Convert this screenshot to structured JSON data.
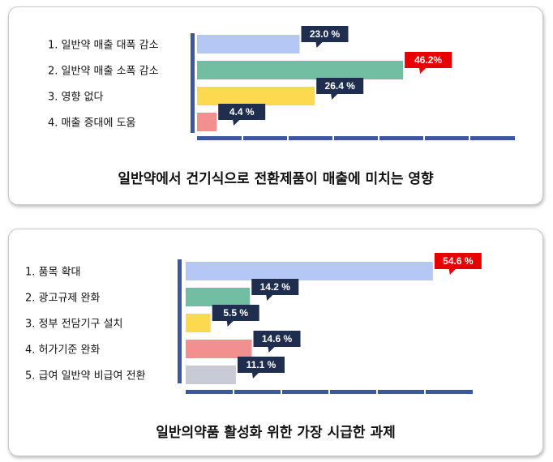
{
  "chart_data": [
    {
      "type": "bar",
      "orientation": "horizontal",
      "title": "일반약에서 건기식으로 전환제품이 매출에 미치는 영향",
      "categories": [
        "1. 일반약 매출 대폭 감소",
        "2. 일반약 매출 소폭 감소",
        "3. 영향 없다",
        "4. 매출 증대에 도움"
      ],
      "values": [
        23.0,
        46.2,
        26.4,
        4.4
      ],
      "value_labels": [
        "23.0 %",
        "46.2%",
        "26.4 %",
        "4.4 %"
      ],
      "bar_colors": [
        "#b4c7f5",
        "#72bea3",
        "#fcd94e",
        "#f28f8f"
      ],
      "label_colors": [
        "#1f2d4f",
        "#e80000",
        "#1f2d4f",
        "#1f2d4f"
      ],
      "xlim": [
        0,
        60
      ],
      "grid": false
    },
    {
      "type": "bar",
      "orientation": "horizontal",
      "title": "일반의약품 활성화 위한 가장 시급한 과제",
      "categories": [
        "1. 품목 확대",
        "2. 광고규제 완화",
        "3. 정부 전담기구 설치",
        "4. 허가기준 완화",
        "5. 급여 일반약 비급여 전환"
      ],
      "values": [
        54.6,
        14.2,
        5.5,
        14.6,
        11.1
      ],
      "value_labels": [
        "54.6 %",
        "14.2 %",
        "5.5 %",
        "14.6 %",
        "11.1 %"
      ],
      "bar_colors": [
        "#b4c7f5",
        "#72bea3",
        "#fcd94e",
        "#f28f8f",
        "#c8cbd6"
      ],
      "label_colors": [
        "#e80000",
        "#1f2d4f",
        "#1f2d4f",
        "#1f2d4f",
        "#1f2d4f"
      ],
      "xlim": [
        0,
        60
      ],
      "grid": false
    }
  ]
}
